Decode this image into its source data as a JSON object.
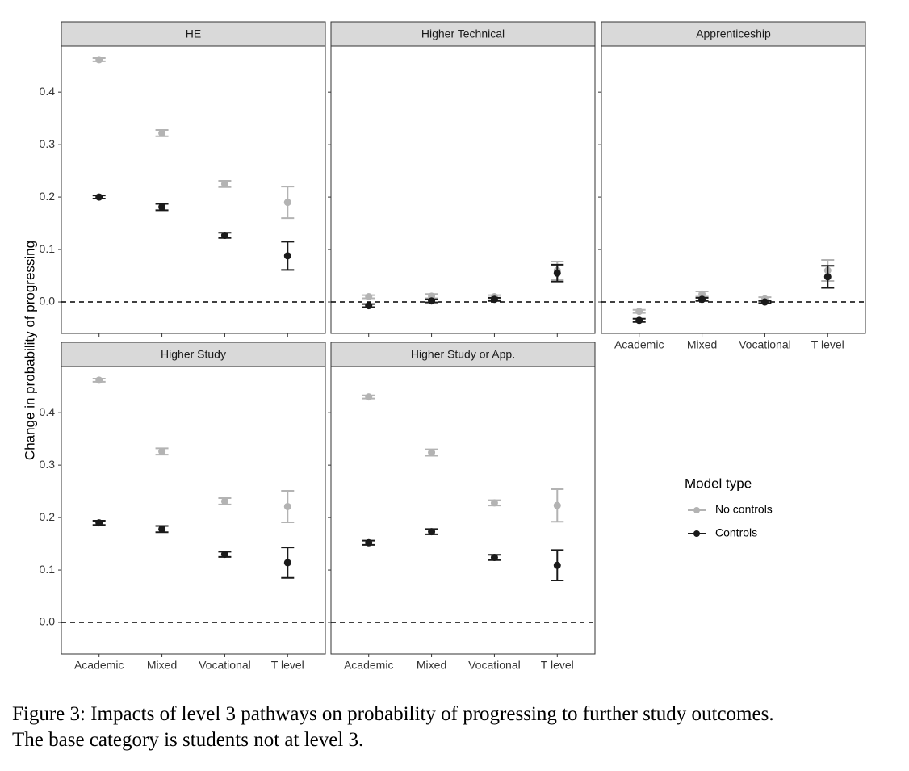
{
  "y_label": "Change in probability of progressing",
  "legend_title": "Model type",
  "caption": [
    "Figure 3: Impacts of level 3 pathways on probability of progressing to further study outcomes.",
    "The base category is students not at level 3."
  ],
  "chart_data": [
    {
      "type": "errorbar",
      "title": "HE",
      "categories": [
        "Academic",
        "Mixed",
        "Vocational",
        "T level"
      ],
      "series": [
        {
          "name": "No controls",
          "color": "#b3b3b3",
          "values": [
            0.462,
            0.322,
            0.225,
            0.19
          ],
          "errors": [
            0.003,
            0.006,
            0.006,
            0.03
          ]
        },
        {
          "name": "Controls",
          "color": "#1a1a1a",
          "values": [
            0.2,
            0.181,
            0.127,
            0.088
          ],
          "errors": [
            0.003,
            0.006,
            0.005,
            0.027
          ]
        }
      ],
      "ylim": [
        -0.06,
        0.488
      ],
      "yticks": [
        {
          "value": 0,
          "label": "0.0"
        },
        0.1,
        0.2,
        0.3,
        0.4
      ],
      "hline": 0
    },
    {
      "type": "errorbar",
      "title": "Higher Technical",
      "categories": [
        "Academic",
        "Mixed",
        "Vocational",
        "T level"
      ],
      "series": [
        {
          "name": "No controls",
          "color": "#b3b3b3",
          "values": [
            0.01,
            0.011,
            0.01,
            0.06
          ],
          "errors": [
            0.003,
            0.004,
            0.003,
            0.017
          ]
        },
        {
          "name": "Controls",
          "color": "#1a1a1a",
          "values": [
            -0.007,
            0.002,
            0.005,
            0.055
          ],
          "errors": [
            0.003,
            0.003,
            0.003,
            0.016
          ]
        }
      ],
      "ylim": [
        -0.06,
        0.488
      ],
      "yticks": [
        {
          "value": 0,
          "label": "0.0"
        },
        0.1,
        0.2,
        0.3,
        0.4
      ],
      "hline": 0
    },
    {
      "type": "errorbar",
      "title": "Apprenticeship",
      "categories": [
        "Academic",
        "Mixed",
        "Vocational",
        "T level"
      ],
      "series": [
        {
          "name": "No controls",
          "color": "#b3b3b3",
          "values": [
            -0.018,
            0.015,
            0.006,
            0.06
          ],
          "errors": [
            0.003,
            0.005,
            0.003,
            0.02
          ]
        },
        {
          "name": "Controls",
          "color": "#1a1a1a",
          "values": [
            -0.035,
            0.005,
            0.0,
            0.048
          ],
          "errors": [
            0.003,
            0.003,
            0.002,
            0.021
          ]
        }
      ],
      "ylim": [
        -0.06,
        0.488
      ],
      "yticks": [
        {
          "value": 0,
          "label": "0.0"
        },
        0.1,
        0.2,
        0.3,
        0.4
      ],
      "hline": 0
    },
    {
      "type": "errorbar",
      "title": "Higher Study",
      "categories": [
        "Academic",
        "Mixed",
        "Vocational",
        "T level"
      ],
      "series": [
        {
          "name": "No controls",
          "color": "#b3b3b3",
          "values": [
            0.462,
            0.326,
            0.231,
            0.221
          ],
          "errors": [
            0.003,
            0.006,
            0.006,
            0.03
          ]
        },
        {
          "name": "Controls",
          "color": "#1a1a1a",
          "values": [
            0.19,
            0.178,
            0.13,
            0.114
          ],
          "errors": [
            0.004,
            0.006,
            0.005,
            0.029
          ]
        }
      ],
      "ylim": [
        -0.06,
        0.488
      ],
      "yticks": [
        {
          "value": 0,
          "label": "0.0"
        },
        0.1,
        0.2,
        0.3,
        0.4
      ],
      "hline": 0
    },
    {
      "type": "errorbar",
      "title": "Higher Study or App.",
      "categories": [
        "Academic",
        "Mixed",
        "Vocational",
        "T level"
      ],
      "series": [
        {
          "name": "No controls",
          "color": "#b3b3b3",
          "values": [
            0.43,
            0.324,
            0.228,
            0.223
          ],
          "errors": [
            0.003,
            0.006,
            0.005,
            0.031
          ]
        },
        {
          "name": "Controls",
          "color": "#1a1a1a",
          "values": [
            0.152,
            0.173,
            0.124,
            0.109
          ],
          "errors": [
            0.004,
            0.005,
            0.005,
            0.029
          ]
        }
      ],
      "ylim": [
        -0.06,
        0.488
      ],
      "yticks": [
        {
          "value": 0,
          "label": "0.0"
        },
        0.1,
        0.2,
        0.3,
        0.4
      ],
      "hline": 0
    }
  ]
}
